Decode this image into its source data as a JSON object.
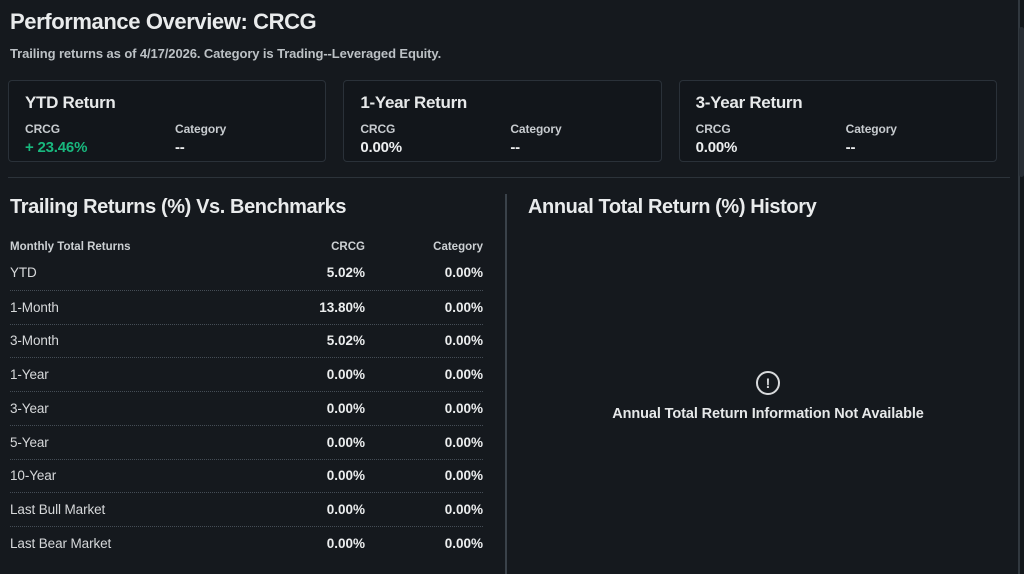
{
  "colors": {
    "positive": "#18b87e"
  },
  "page": {
    "title": "Performance Overview: CRCG",
    "subtitle": "Trailing returns as of 4/17/2026. Category is Trading--Leveraged Equity."
  },
  "cards": [
    {
      "title": "YTD Return",
      "fund_label": "CRCG",
      "fund_value": "+ 23.46%",
      "positive": true,
      "category_label": "Category",
      "category_value": "--"
    },
    {
      "title": "1-Year Return",
      "fund_label": "CRCG",
      "fund_value": "0.00%",
      "positive": false,
      "category_label": "Category",
      "category_value": "--"
    },
    {
      "title": "3-Year Return",
      "fund_label": "CRCG",
      "fund_value": "0.00%",
      "positive": false,
      "category_label": "Category",
      "category_value": "--"
    }
  ],
  "trailing_returns": {
    "title": "Trailing Returns (%) Vs. Benchmarks",
    "columns": {
      "label": "Monthly Total Returns",
      "crcg": "CRCG",
      "category": "Category"
    },
    "rows": [
      {
        "label": "YTD",
        "crcg": "5.02%",
        "category": "0.00%"
      },
      {
        "label": "1-Month",
        "crcg": "13.80%",
        "category": "0.00%"
      },
      {
        "label": "3-Month",
        "crcg": "5.02%",
        "category": "0.00%"
      },
      {
        "label": "1-Year",
        "crcg": "0.00%",
        "category": "0.00%"
      },
      {
        "label": "3-Year",
        "crcg": "0.00%",
        "category": "0.00%"
      },
      {
        "label": "5-Year",
        "crcg": "0.00%",
        "category": "0.00%"
      },
      {
        "label": "10-Year",
        "crcg": "0.00%",
        "category": "0.00%"
      },
      {
        "label": "Last Bull Market",
        "crcg": "0.00%",
        "category": "0.00%"
      },
      {
        "label": "Last Bear Market",
        "crcg": "0.00%",
        "category": "0.00%"
      }
    ]
  },
  "annual_history": {
    "title": "Annual Total Return (%) History",
    "empty_icon_glyph": "!",
    "empty_message": "Annual Total Return Information Not Available"
  }
}
